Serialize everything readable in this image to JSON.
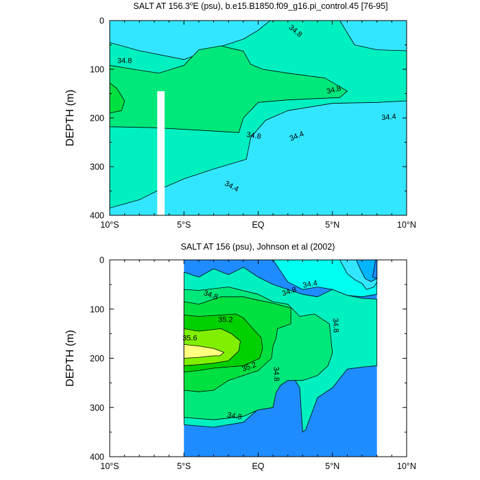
{
  "chart_data": [
    {
      "type": "contour",
      "title": "SALT AT 156.3°E (psu), b.e15.B1850.f09_g16.pi_control.45 [76-95]",
      "title_main": "SALT AT 156.3",
      "title_sup": "o",
      "title_rest": "E (psu), b.e15.B1850.f09_g16.pi_control.45 [76-95]",
      "ylabel": "DEPTH (m)",
      "xlim": [
        -10,
        10
      ],
      "ylim": [
        0,
        400
      ],
      "y_inverted": true,
      "x_ticks": [
        -10,
        -5,
        0,
        5,
        10
      ],
      "x_tick_labels": [
        "10°S",
        "5°S",
        "EQ",
        "5°N",
        "10°N"
      ],
      "y_ticks": [
        0,
        100,
        200,
        300,
        400
      ],
      "y_tick_labels": [
        "0",
        "100",
        "200",
        "300",
        "400"
      ],
      "data_extent_x": [
        -10,
        10
      ],
      "missing_strip_x": [
        -6.8,
        -6.3
      ],
      "missing_strip_depth": [
        145,
        400
      ],
      "contour_interval": 0.2,
      "colors": {
        "<34.4": "#33E6FF",
        "34.4-34.6": "#00FFF0",
        "34.6-34.8": "#00F0C0",
        "34.8-35.0": "#00E87A",
        "35.0-35.2": "#00E040"
      },
      "regions": [
        {
          "level": "34.6-34.8",
          "label": "",
          "points": [
            [
              -10,
              45
            ],
            [
              -8,
              62
            ],
            [
              -5,
              80
            ],
            [
              -3,
              58
            ],
            [
              -1,
              38
            ],
            [
              0,
              20
            ],
            [
              0.8,
              0
            ],
            [
              5.5,
              0
            ],
            [
              6,
              25
            ],
            [
              6.5,
              50
            ],
            [
              8,
              60
            ],
            [
              10,
              62
            ],
            [
              10,
              165
            ],
            [
              8,
              168
            ],
            [
              5,
              170
            ],
            [
              2,
              185
            ],
            [
              0.5,
              205
            ],
            [
              -0.5,
              240
            ],
            [
              -0.8,
              285
            ],
            [
              -3,
              305
            ],
            [
              -5,
              325
            ],
            [
              -6.5,
              345
            ],
            [
              -8,
              368
            ],
            [
              -10,
              385
            ]
          ]
        },
        {
          "level": "34.8-35.0",
          "label": "",
          "points": [
            [
              -10,
              92
            ],
            [
              -8,
              102
            ],
            [
              -6.7,
              108
            ],
            [
              -5,
              92
            ],
            [
              -4,
              60
            ],
            [
              -2.5,
              52
            ],
            [
              -1,
              63
            ],
            [
              -0.5,
              90
            ],
            [
              0.3,
              100
            ],
            [
              2,
              108
            ],
            [
              4.5,
              118
            ],
            [
              6,
              145
            ],
            [
              5.5,
              158
            ],
            [
              2,
              163
            ],
            [
              0,
              168
            ],
            [
              -1,
              200
            ],
            [
              -1.3,
              230
            ],
            [
              -4,
              225
            ],
            [
              -7,
              220
            ],
            [
              -10,
              218
            ]
          ]
        },
        {
          "level": "35.0-35.2",
          "label": "",
          "points": [
            [
              -10,
              128
            ],
            [
              -9.5,
              140
            ],
            [
              -9,
              165
            ],
            [
              -9.2,
              185
            ],
            [
              -10,
              190
            ]
          ]
        }
      ],
      "contour_labels": [
        {
          "text": "34.8",
          "x": 2.5,
          "y": 22,
          "angle": 40
        },
        {
          "text": "34.8",
          "x": -9,
          "y": 83,
          "angle": 0
        },
        {
          "text": "34.8",
          "x": 5.1,
          "y": 143,
          "angle": -14
        },
        {
          "text": "34.4",
          "x": 8.8,
          "y": 199,
          "angle": -5
        },
        {
          "text": "34.8",
          "x": -0.3,
          "y": 237,
          "angle": 8
        },
        {
          "text": "34.4",
          "x": 2.6,
          "y": 238,
          "angle": -22
        },
        {
          "text": "34.4",
          "x": -1.8,
          "y": 341,
          "angle": 28
        }
      ]
    },
    {
      "type": "contour",
      "title": "SALT AT 156 (psu), Johnson et al (2002)",
      "ylabel": "DEPTH (m)",
      "xlim": [
        -10,
        10
      ],
      "ylim": [
        0,
        400
      ],
      "y_inverted": true,
      "x_ticks": [
        -10,
        -5,
        0,
        5,
        10
      ],
      "x_tick_labels": [
        "10°S",
        "5°S",
        "EQ",
        "5°N",
        "10°N"
      ],
      "y_ticks": [
        0,
        100,
        200,
        300,
        400
      ],
      "y_tick_labels": [
        "0",
        "100",
        "200",
        "300",
        "400"
      ],
      "data_extent_x": [
        -5,
        8
      ],
      "contour_interval": 0.2,
      "colors": {
        "<34.0": "#1E8CFF",
        "34.0-34.2": "#00B4FF",
        "34.2-34.4": "#33E6FF",
        "34.4-34.6": "#00FFF0",
        "34.6-34.8": "#00F0C0",
        "34.8-35.0": "#00E87A",
        "35.0-35.2": "#00E040",
        "35.2-35.4": "#00D000",
        "35.4-35.6": "#80F000",
        "35.6-35.8": "#FFFF80"
      },
      "regions": [
        {
          "level": "34.4-34.6",
          "label": "",
          "points": [
            [
              1,
              0
            ],
            [
              8,
              0
            ],
            [
              8,
              70
            ],
            [
              7,
              75
            ],
            [
              6,
              72
            ],
            [
              5,
              60
            ],
            [
              4,
              55
            ],
            [
              3,
              60
            ],
            [
              2,
              45
            ]
          ]
        },
        {
          "level": "34.6-34.8",
          "label": "",
          "points": [
            [
              -5,
              25
            ],
            [
              -4,
              35
            ],
            [
              -3,
              18
            ],
            [
              -2,
              30
            ],
            [
              -1,
              15
            ],
            [
              0,
              35
            ],
            [
              1,
              50
            ],
            [
              2,
              60
            ],
            [
              3,
              70
            ],
            [
              4,
              75
            ],
            [
              5,
              60
            ],
            [
              6,
              72
            ],
            [
              7,
              78
            ],
            [
              8,
              80
            ],
            [
              8,
              215
            ],
            [
              7,
              218
            ],
            [
              6,
              222
            ],
            [
              5,
              260
            ],
            [
              4,
              280
            ],
            [
              3.2,
              345
            ],
            [
              3,
              350
            ],
            [
              2.8,
              260
            ],
            [
              2,
              220
            ],
            [
              1.3,
              180
            ],
            [
              1.6,
              175
            ],
            [
              2.2,
              165
            ],
            [
              2.2,
              205
            ],
            [
              2.5,
              215
            ],
            [
              3,
              220
            ],
            [
              3.3,
              210
            ],
            [
              3,
              180
            ],
            [
              2.2,
              160
            ],
            [
              1.5,
              150
            ],
            [
              1.2,
              160
            ],
            [
              1.3,
              230
            ],
            [
              0.5,
              290
            ],
            [
              -1,
              330
            ],
            [
              -3,
              340
            ],
            [
              -5,
              335
            ]
          ]
        },
        {
          "level": "34.8-35.0",
          "label": "",
          "points": [
            [
              -5,
              60
            ],
            [
              -4,
              62
            ],
            [
              -2,
              55
            ],
            [
              0,
              70
            ],
            [
              1,
              85
            ],
            [
              2,
              90
            ],
            [
              2.8,
              115
            ],
            [
              3.8,
              110
            ],
            [
              4.8,
              130
            ],
            [
              5,
              190
            ],
            [
              4.7,
              215
            ],
            [
              4,
              235
            ],
            [
              3,
              245
            ],
            [
              2,
              245
            ],
            [
              1.5,
              255
            ],
            [
              1.2,
              270
            ],
            [
              1,
              300
            ],
            [
              0,
              305
            ],
            [
              -1,
              318
            ],
            [
              -3,
              325
            ],
            [
              -5,
              320
            ]
          ]
        },
        {
          "level": "35.0-35.2",
          "label": "",
          "points": [
            [
              -5,
              85
            ],
            [
              -4,
              90
            ],
            [
              -2.5,
              75
            ],
            [
              -1,
              75
            ],
            [
              0,
              82
            ],
            [
              1,
              88
            ],
            [
              2.2,
              98
            ],
            [
              2.2,
              130
            ],
            [
              1.3,
              140
            ],
            [
              1.2,
              160
            ],
            [
              1,
              175
            ],
            [
              0.9,
              200
            ],
            [
              0,
              225
            ],
            [
              -1,
              235
            ],
            [
              -2,
              245
            ],
            [
              -3,
              265
            ],
            [
              -4,
              268
            ],
            [
              -5,
              265
            ]
          ]
        },
        {
          "level": "35.2-35.4",
          "label": "",
          "points": [
            [
              -5,
              112
            ],
            [
              -4,
              115
            ],
            [
              -2.5,
              112
            ],
            [
              -1.5,
              110
            ],
            [
              -1,
              118
            ],
            [
              -0.5,
              135
            ],
            [
              0.2,
              158
            ],
            [
              0.3,
              180
            ],
            [
              0.1,
              200
            ],
            [
              -1,
              215
            ],
            [
              -3,
              220
            ],
            [
              -4,
              225
            ],
            [
              -5,
              228
            ]
          ]
        },
        {
          "level": "35.4-35.6",
          "label": "",
          "points": [
            [
              -5,
              140
            ],
            [
              -4,
              145
            ],
            [
              -2.5,
              140
            ],
            [
              -1.8,
              150
            ],
            [
              -1.2,
              165
            ],
            [
              -1.3,
              185
            ],
            [
              -2,
              205
            ],
            [
              -3,
              210
            ],
            [
              -4,
              213
            ],
            [
              -5,
              215
            ]
          ]
        },
        {
          "level": "35.6-35.8",
          "label": "",
          "points": [
            [
              -5,
              172
            ],
            [
              -4,
              175
            ],
            [
              -3,
              180
            ],
            [
              -2.3,
              188
            ],
            [
              -2.6,
              195
            ],
            [
              -3,
              195
            ],
            [
              -4,
              198
            ],
            [
              -5,
              200
            ]
          ]
        },
        {
          "level": "34.2-34.4",
          "label": "",
          "points": [
            [
              5.5,
              0
            ],
            [
              8,
              0
            ],
            [
              8,
              45
            ],
            [
              7.8,
              55
            ],
            [
              7.3,
              60
            ],
            [
              7,
              48
            ],
            [
              6.5,
              40
            ],
            [
              6,
              28
            ]
          ]
        },
        {
          "level": "34.0-34.2",
          "label": "",
          "points": [
            [
              6.6,
              0
            ],
            [
              8,
              0
            ],
            [
              8,
              38
            ],
            [
              7.6,
              44
            ],
            [
              7.2,
              38
            ],
            [
              6.9,
              20
            ]
          ]
        },
        {
          "level": "<34.0",
          "label": "",
          "points": [
            [
              7.9,
              0
            ],
            [
              8,
              0
            ],
            [
              8,
              38
            ],
            [
              7.7,
              35
            ],
            [
              7.8,
              20
            ]
          ]
        }
      ],
      "contour_labels": [
        {
          "text": "34.4",
          "x": 3.5,
          "y": 50,
          "angle": -10
        },
        {
          "text": "34.8",
          "x": -3.2,
          "y": 72,
          "angle": 20
        },
        {
          "text": "34.8",
          "x": 2.1,
          "y": 65,
          "angle": -18
        },
        {
          "text": "35.2",
          "x": -2.2,
          "y": 122,
          "angle": 0
        },
        {
          "text": "34.8",
          "x": 5.2,
          "y": 133,
          "angle": 88
        },
        {
          "text": "35.6",
          "x": -4.6,
          "y": 160,
          "angle": 0
        },
        {
          "text": "35.2",
          "x": -0.6,
          "y": 218,
          "angle": -20
        },
        {
          "text": "34.8",
          "x": 1.2,
          "y": 232,
          "angle": 88
        },
        {
          "text": "34.8",
          "x": -1.6,
          "y": 318,
          "angle": 10
        }
      ]
    }
  ]
}
